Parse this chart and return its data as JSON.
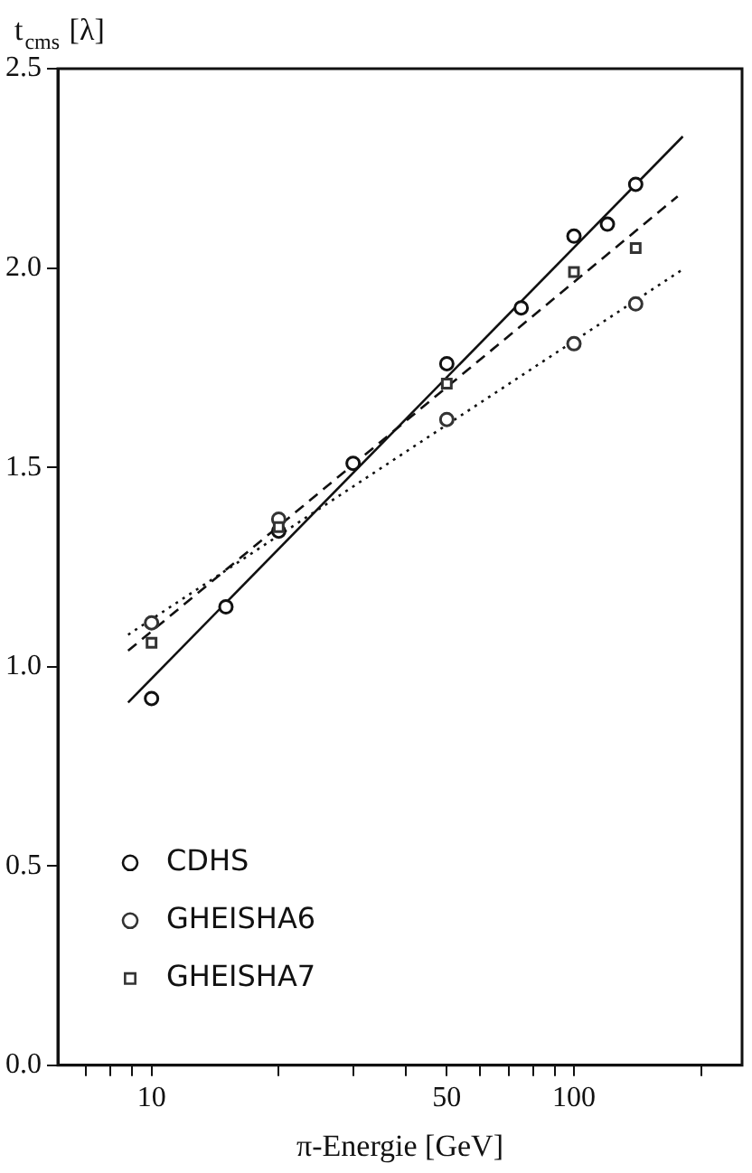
{
  "chart_data": {
    "type": "scatter",
    "ylabel": "t$_{cms}$ [λ]",
    "xlabel": "π-Energie [GeV]",
    "log": "x",
    "xlim": [
      6,
      250
    ],
    "xticks": [
      {
        "value": 7,
        "label": null
      },
      {
        "value": 8,
        "label": null
      },
      {
        "value": 9,
        "label": null
      },
      10,
      {
        "value": 20,
        "label": null
      },
      {
        "value": 30,
        "label": null
      },
      {
        "value": 40,
        "label": null
      },
      50,
      {
        "value": 60,
        "label": null
      },
      {
        "value": 70,
        "label": null
      },
      {
        "value": 80,
        "label": null
      },
      {
        "value": 90,
        "label": null
      },
      100,
      {
        "value": 200,
        "label": null
      }
    ],
    "ylim": [
      0,
      2.5
    ],
    "yticks": [
      {
        "value": 0,
        "label": "0.0"
      },
      {
        "value": 0.5,
        "label": "0.5"
      },
      {
        "value": 1,
        "label": "1.0"
      },
      {
        "value": 1.5,
        "label": "1.5"
      },
      {
        "value": 2,
        "label": "2.0"
      },
      {
        "value": 2.5,
        "label": "2.5"
      }
    ],
    "grid": false,
    "legend": "bottom left",
    "series": [
      {
        "name": "CDHS",
        "marker": "circle",
        "color": "#111111",
        "x": [
          10,
          15,
          20,
          30,
          50,
          75,
          100,
          120,
          140
        ],
        "values": [
          0.92,
          1.15,
          1.34,
          1.51,
          1.76,
          1.9,
          2.08,
          2.11,
          2.21
        ]
      },
      {
        "name": "GHEISHA6",
        "marker": "circle",
        "color": "#333333",
        "x": [
          10,
          20,
          50,
          100,
          140
        ],
        "values": [
          1.11,
          1.37,
          1.62,
          1.81,
          1.91
        ]
      },
      {
        "name": "GHEISHA7",
        "marker": "square",
        "color": "#333333",
        "x": [
          10,
          20,
          50,
          100,
          140
        ],
        "values": [
          1.06,
          1.35,
          1.71,
          1.99,
          2.05
        ]
      },
      {
        "type": "line",
        "line_style": "solid",
        "color": "#111111",
        "x": [
          8.8,
          181
        ],
        "values": [
          0.91,
          2.33
        ]
      },
      {
        "type": "line",
        "line_style": "dashed",
        "color": "#111111",
        "x": [
          8.8,
          176
        ],
        "values": [
          1.04,
          2.18
        ]
      },
      {
        "type": "line",
        "line_style": "dotted",
        "color": "#111111",
        "x": [
          8.8,
          183
        ],
        "values": [
          1.08,
          2.0
        ]
      }
    ]
  }
}
